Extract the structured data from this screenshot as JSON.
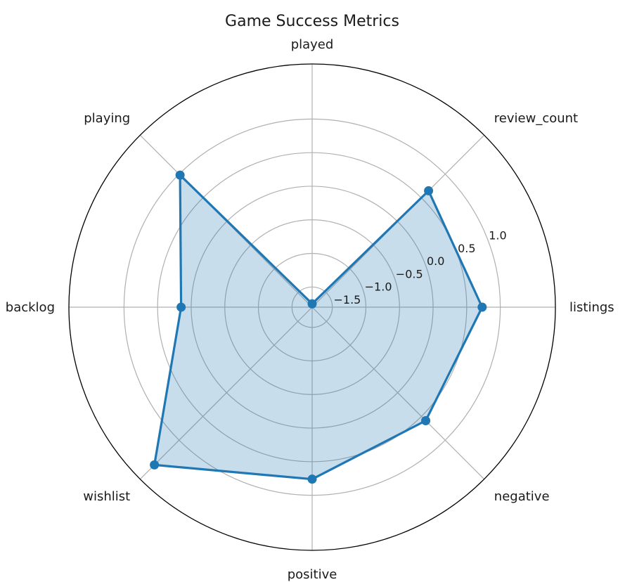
{
  "chart_data": {
    "type": "radar",
    "title": "Game Success Metrics",
    "categories": [
      "listings",
      "review_count",
      "played",
      "playing",
      "backlog",
      "wishlist",
      "positive",
      "negative"
    ],
    "series": [
      {
        "values": [
          0.73,
          0.65,
          -1.75,
          0.98,
          0.15,
          1.52,
          0.76,
          0.59
        ],
        "color": "#1f77b4",
        "fill_alpha": 0.25
      }
    ],
    "radial_ticks": [
      "−1.5",
      "−1.0",
      "−0.5",
      "0.0",
      "0.5",
      "1.0"
    ],
    "radial_tick_values": [
      -1.5,
      -1.0,
      -0.5,
      0.0,
      0.5,
      1.0
    ],
    "rlim": [
      -1.8,
      1.82
    ],
    "grid": true
  }
}
